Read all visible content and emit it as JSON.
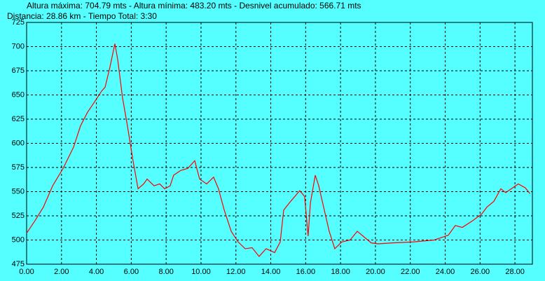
{
  "chart_data": {
    "type": "line",
    "title": "Altura máxima: 704.79 mts - Altura mínima: 483.20 mts - Desnivel acumulado: 566.71 mts",
    "subtitle": "Distancia: 28.86 km - Tiempo Total: 3:30",
    "x": [
      0,
      0.48,
      0.96,
      1.49,
      2.09,
      2.69,
      3.09,
      3.49,
      3.9,
      4.3,
      4.5,
      4.78,
      5.06,
      5.22,
      5.5,
      5.78,
      6.1,
      6.39,
      6.71,
      6.91,
      7.31,
      7.63,
      7.91,
      8.23,
      8.43,
      8.84,
      9.24,
      9.64,
      9.92,
      10.32,
      10.72,
      11.0,
      11.33,
      11.73,
      12.13,
      12.53,
      12.93,
      13.33,
      13.73,
      14.22,
      14.54,
      14.74,
      15.14,
      15.66,
      15.94,
      16.14,
      16.27,
      16.55,
      16.75,
      17.03,
      17.35,
      17.67,
      18.07,
      18.55,
      18.96,
      19.36,
      19.76,
      20.16,
      20.96,
      22.17,
      23.37,
      24.18,
      24.58,
      24.98,
      25.58,
      26.1,
      26.39,
      26.79,
      27.19,
      27.47,
      27.79,
      28.19,
      28.59,
      28.86
    ],
    "values": [
      507,
      520,
      534,
      556,
      574,
      596,
      618,
      632,
      643,
      654,
      658,
      679,
      703,
      687,
      647,
      618,
      582,
      553,
      558,
      563,
      556,
      558,
      553,
      556,
      567,
      572,
      574,
      582,
      563,
      558,
      565,
      553,
      531,
      509,
      498,
      491,
      492,
      483,
      491,
      487,
      498,
      531,
      540,
      551,
      545,
      504,
      538,
      567,
      556,
      534,
      509,
      491,
      498,
      500,
      509,
      503,
      497,
      496,
      497,
      498,
      500,
      505,
      515,
      513,
      520,
      527,
      534,
      540,
      553,
      549,
      553,
      558,
      554,
      548
    ],
    "color": "#ff0000",
    "xlim": [
      0,
      29
    ],
    "ylim": [
      475,
      725
    ],
    "xticks": [
      {
        "value": 0,
        "label": "0.00"
      },
      {
        "value": 2,
        "label": "2.00"
      },
      {
        "value": 4,
        "label": "4.00"
      },
      {
        "value": 6,
        "label": "6.00"
      },
      {
        "value": 8,
        "label": "8.00"
      },
      {
        "value": 10,
        "label": "10.00"
      },
      {
        "value": 12,
        "label": "12.00"
      },
      {
        "value": 14,
        "label": "14.00"
      },
      {
        "value": 16,
        "label": "16.00"
      },
      {
        "value": 18,
        "label": "18.00"
      },
      {
        "value": 20,
        "label": "20.00"
      },
      {
        "value": 22,
        "label": "22.00"
      },
      {
        "value": 24,
        "label": "24.00"
      },
      {
        "value": 26,
        "label": "26.00"
      },
      {
        "value": 28,
        "label": "28.00"
      }
    ],
    "yticks": [
      475,
      500,
      525,
      550,
      575,
      600,
      625,
      650,
      675,
      700,
      725
    ],
    "grid": true
  }
}
